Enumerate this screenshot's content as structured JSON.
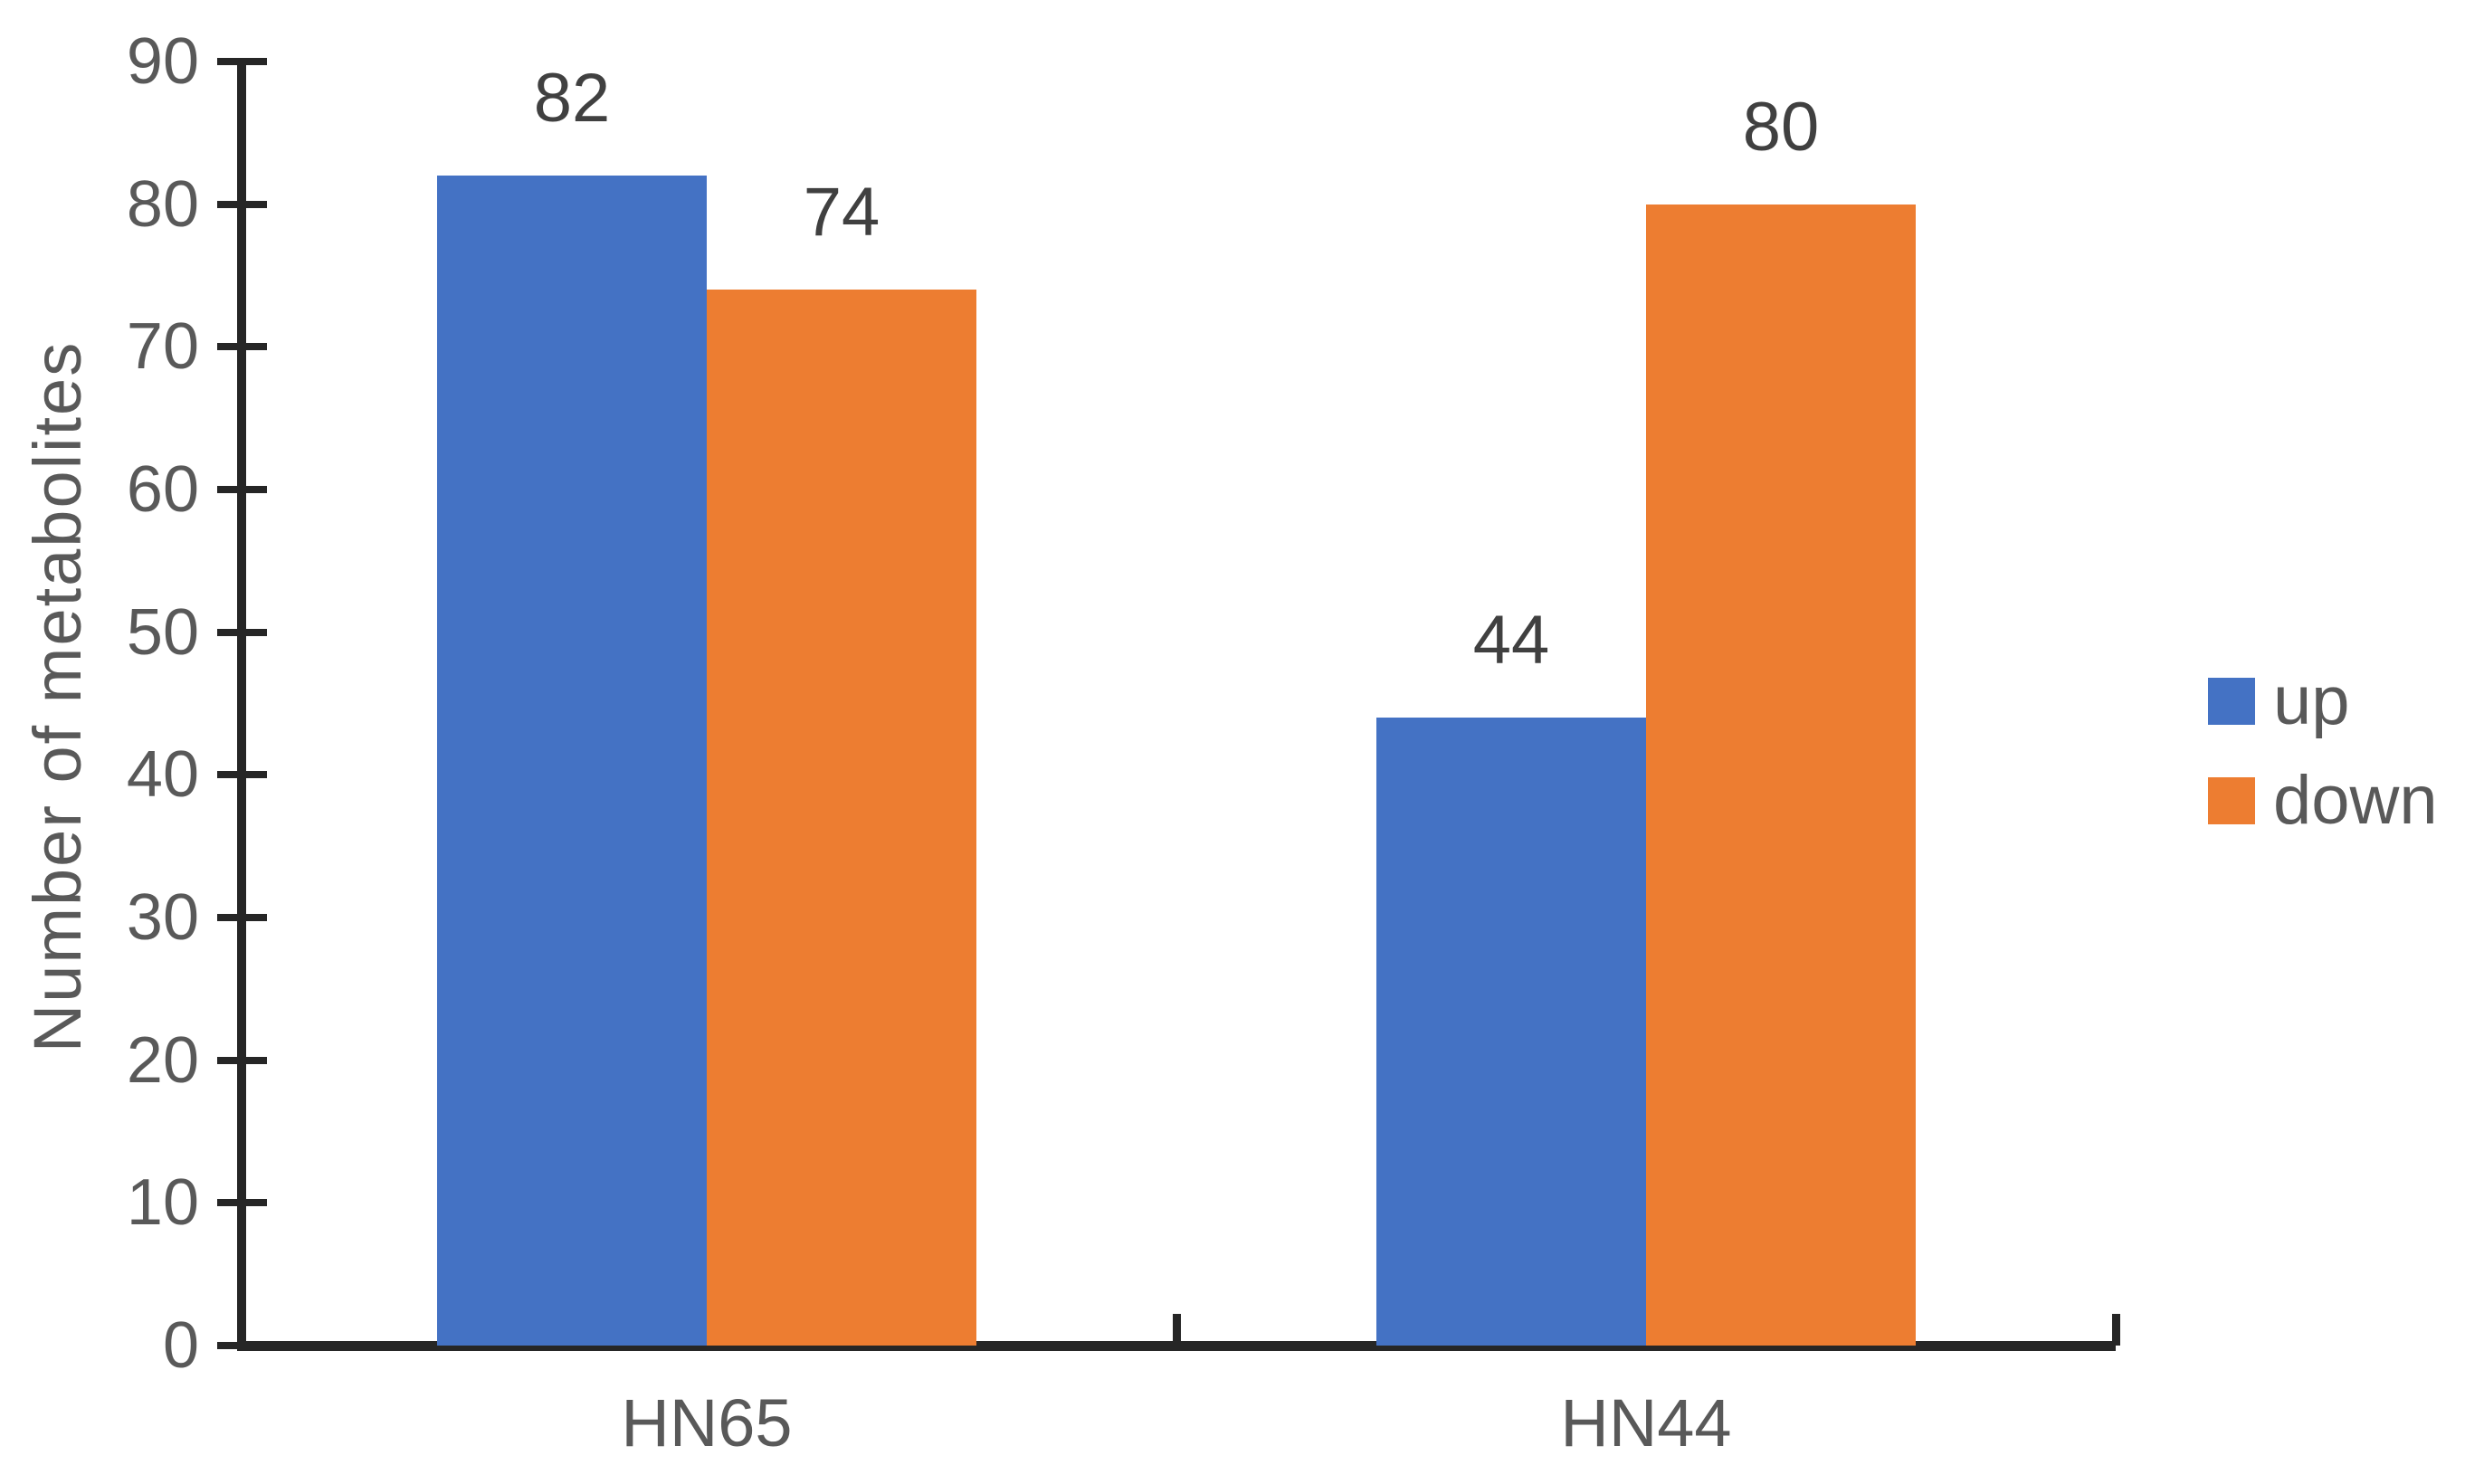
{
  "chart_data": {
    "type": "bar",
    "title": "",
    "categories": [
      "HN65",
      "HN44"
    ],
    "series": [
      {
        "name": "up",
        "color": "#4472C4",
        "values": [
          82,
          44
        ]
      },
      {
        "name": "down",
        "color": "#ED7D31",
        "values": [
          74,
          80
        ]
      }
    ],
    "data_labels": [
      [
        "82",
        "44"
      ],
      [
        "74",
        "80"
      ]
    ],
    "xlabel": "",
    "ylabel": "Number of metabolites",
    "ylim": [
      0,
      90
    ],
    "yticks": [
      "0",
      "10",
      "20",
      "30",
      "40",
      "50",
      "60",
      "70",
      "80",
      "90"
    ],
    "grid": false,
    "legend_position": "right"
  },
  "legend": {
    "items": [
      {
        "label": "up",
        "color": "#4472C4"
      },
      {
        "label": "down",
        "color": "#ED7D31"
      }
    ]
  },
  "colors": {
    "background": "#ffffff",
    "axis_line": "#262626",
    "tick_text": "#595959",
    "data_label_text": "#404040",
    "up": "#4472C4",
    "down": "#ED7D31"
  }
}
